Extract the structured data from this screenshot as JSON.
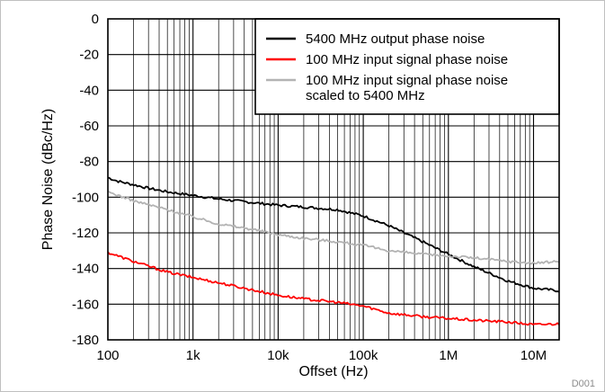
{
  "chart_data": {
    "type": "line",
    "xlabel": "Offset (Hz)",
    "ylabel": "Phase Noise (dBc/Hz)",
    "xscale": "log",
    "xlim": [
      100,
      20000000
    ],
    "ylim": [
      -180,
      0
    ],
    "grid": true,
    "legend_position": "top-right",
    "figure_id": "D001",
    "xticks": [
      {
        "value": 100,
        "label": "100"
      },
      {
        "value": 1000,
        "label": "1k"
      },
      {
        "value": 10000,
        "label": "10k"
      },
      {
        "value": 100000,
        "label": "100k"
      },
      {
        "value": 1000000,
        "label": "1M"
      },
      {
        "value": 10000000,
        "label": "10M"
      }
    ],
    "yticks": [
      {
        "value": 0,
        "label": "0"
      },
      {
        "value": -20,
        "label": "-20"
      },
      {
        "value": -40,
        "label": "-40"
      },
      {
        "value": -60,
        "label": "-60"
      },
      {
        "value": -80,
        "label": "-80"
      },
      {
        "value": -100,
        "label": "-100"
      },
      {
        "value": -120,
        "label": "-120"
      },
      {
        "value": -140,
        "label": "-140"
      },
      {
        "value": -160,
        "label": "-160"
      },
      {
        "value": -180,
        "label": "-180"
      }
    ],
    "series": [
      {
        "name": "5400 MHz output phase noise",
        "color": "#000000",
        "x": [
          100,
          130,
          200,
          300,
          500,
          1000,
          2000,
          5000,
          10000,
          20000,
          50000,
          100000,
          200000,
          500000,
          1000000,
          2000000,
          5000000,
          10000000,
          20000000
        ],
        "y": [
          -89,
          -91,
          -93,
          -95,
          -97,
          -99,
          -101,
          -103,
          -104.5,
          -105.5,
          -107,
          -110.5,
          -116,
          -125,
          -132,
          -139,
          -147,
          -151,
          -152.5
        ]
      },
      {
        "name": "100 MHz input signal phase noise",
        "color": "#ff0000",
        "x": [
          100,
          200,
          500,
          1000,
          2000,
          5000,
          10000,
          20000,
          50000,
          100000,
          200000,
          500000,
          1000000,
          2000000,
          5000000,
          10000000,
          20000000
        ],
        "y": [
          -131,
          -136,
          -142,
          -145,
          -148,
          -152,
          -155,
          -157,
          -159,
          -161,
          -165,
          -167,
          -168,
          -169,
          -170,
          -171.5,
          -171
        ]
      },
      {
        "name": "100 MHz input signal phase noise scaled to 5400 MHz",
        "color": "#b3b3b3",
        "x": [
          100,
          200,
          500,
          1000,
          2000,
          5000,
          10000,
          20000,
          50000,
          100000,
          200000,
          500000,
          1000000,
          2000000,
          5000000,
          10000000,
          20000000
        ],
        "y": [
          -97,
          -102,
          -107,
          -111,
          -115,
          -118,
          -121,
          -123,
          -125,
          -127,
          -130,
          -132,
          -133,
          -134,
          -136,
          -137,
          -136
        ]
      }
    ],
    "legend": [
      {
        "label": "5400 MHz output phase noise",
        "color": "#000000"
      },
      {
        "label": "100 MHz input signal phase noise",
        "color": "#ff0000"
      },
      {
        "label": "100 MHz input signal phase noise",
        "label2": "scaled to 5400 MHz",
        "color": "#b3b3b3"
      }
    ]
  }
}
